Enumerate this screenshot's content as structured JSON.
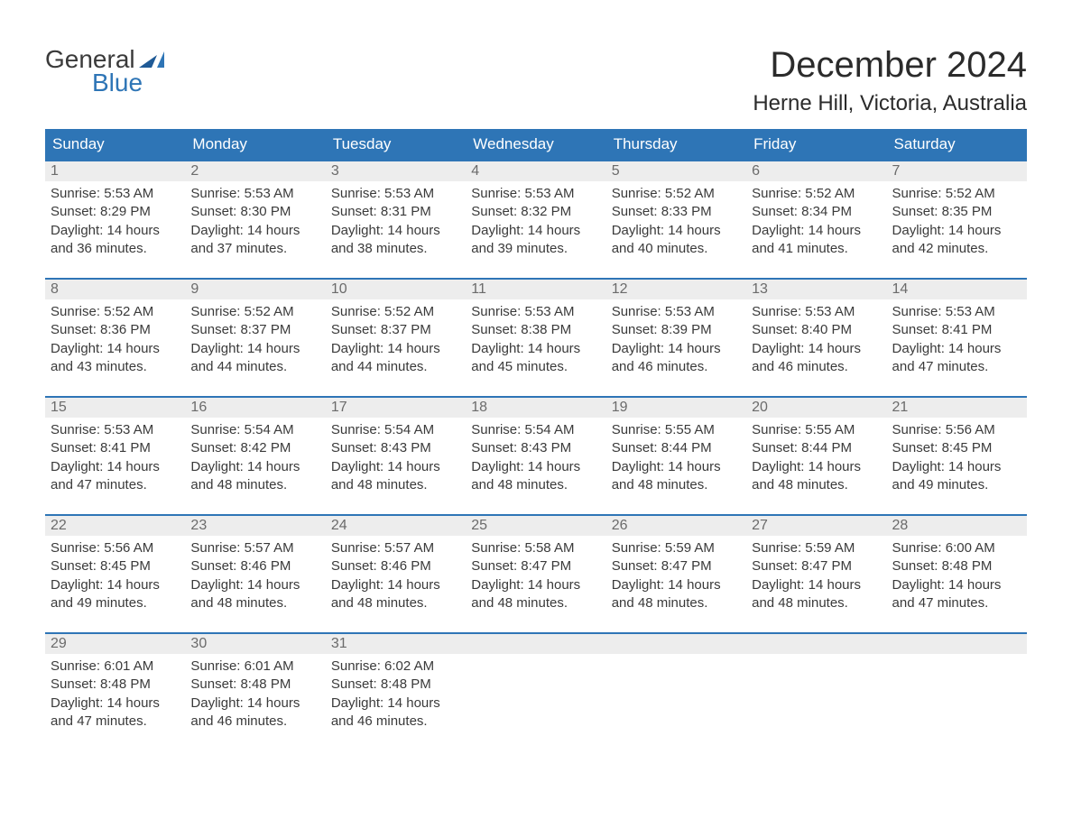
{
  "logo": {
    "line1": "General",
    "line2": "Blue"
  },
  "title": "December 2024",
  "subtitle": "Herne Hill, Victoria, Australia",
  "colors": {
    "header_bg": "#2e75b6",
    "header_text": "#ffffff",
    "daynum_bg": "#ededed",
    "daynum_text": "#6b6b6b",
    "body_text": "#3a3a3a",
    "week_border": "#2e75b6",
    "page_bg": "#ffffff",
    "title_color": "#2b2b2b"
  },
  "day_labels": [
    "Sunday",
    "Monday",
    "Tuesday",
    "Wednesday",
    "Thursday",
    "Friday",
    "Saturday"
  ],
  "weeks": [
    [
      {
        "n": "1",
        "sunrise": "5:53 AM",
        "sunset": "8:29 PM",
        "daylight": "14 hours and 36 minutes."
      },
      {
        "n": "2",
        "sunrise": "5:53 AM",
        "sunset": "8:30 PM",
        "daylight": "14 hours and 37 minutes."
      },
      {
        "n": "3",
        "sunrise": "5:53 AM",
        "sunset": "8:31 PM",
        "daylight": "14 hours and 38 minutes."
      },
      {
        "n": "4",
        "sunrise": "5:53 AM",
        "sunset": "8:32 PM",
        "daylight": "14 hours and 39 minutes."
      },
      {
        "n": "5",
        "sunrise": "5:52 AM",
        "sunset": "8:33 PM",
        "daylight": "14 hours and 40 minutes."
      },
      {
        "n": "6",
        "sunrise": "5:52 AM",
        "sunset": "8:34 PM",
        "daylight": "14 hours and 41 minutes."
      },
      {
        "n": "7",
        "sunrise": "5:52 AM",
        "sunset": "8:35 PM",
        "daylight": "14 hours and 42 minutes."
      }
    ],
    [
      {
        "n": "8",
        "sunrise": "5:52 AM",
        "sunset": "8:36 PM",
        "daylight": "14 hours and 43 minutes."
      },
      {
        "n": "9",
        "sunrise": "5:52 AM",
        "sunset": "8:37 PM",
        "daylight": "14 hours and 44 minutes."
      },
      {
        "n": "10",
        "sunrise": "5:52 AM",
        "sunset": "8:37 PM",
        "daylight": "14 hours and 44 minutes."
      },
      {
        "n": "11",
        "sunrise": "5:53 AM",
        "sunset": "8:38 PM",
        "daylight": "14 hours and 45 minutes."
      },
      {
        "n": "12",
        "sunrise": "5:53 AM",
        "sunset": "8:39 PM",
        "daylight": "14 hours and 46 minutes."
      },
      {
        "n": "13",
        "sunrise": "5:53 AM",
        "sunset": "8:40 PM",
        "daylight": "14 hours and 46 minutes."
      },
      {
        "n": "14",
        "sunrise": "5:53 AM",
        "sunset": "8:41 PM",
        "daylight": "14 hours and 47 minutes."
      }
    ],
    [
      {
        "n": "15",
        "sunrise": "5:53 AM",
        "sunset": "8:41 PM",
        "daylight": "14 hours and 47 minutes."
      },
      {
        "n": "16",
        "sunrise": "5:54 AM",
        "sunset": "8:42 PM",
        "daylight": "14 hours and 48 minutes."
      },
      {
        "n": "17",
        "sunrise": "5:54 AM",
        "sunset": "8:43 PM",
        "daylight": "14 hours and 48 minutes."
      },
      {
        "n": "18",
        "sunrise": "5:54 AM",
        "sunset": "8:43 PM",
        "daylight": "14 hours and 48 minutes."
      },
      {
        "n": "19",
        "sunrise": "5:55 AM",
        "sunset": "8:44 PM",
        "daylight": "14 hours and 48 minutes."
      },
      {
        "n": "20",
        "sunrise": "5:55 AM",
        "sunset": "8:44 PM",
        "daylight": "14 hours and 48 minutes."
      },
      {
        "n": "21",
        "sunrise": "5:56 AM",
        "sunset": "8:45 PM",
        "daylight": "14 hours and 49 minutes."
      }
    ],
    [
      {
        "n": "22",
        "sunrise": "5:56 AM",
        "sunset": "8:45 PM",
        "daylight": "14 hours and 49 minutes."
      },
      {
        "n": "23",
        "sunrise": "5:57 AM",
        "sunset": "8:46 PM",
        "daylight": "14 hours and 48 minutes."
      },
      {
        "n": "24",
        "sunrise": "5:57 AM",
        "sunset": "8:46 PM",
        "daylight": "14 hours and 48 minutes."
      },
      {
        "n": "25",
        "sunrise": "5:58 AM",
        "sunset": "8:47 PM",
        "daylight": "14 hours and 48 minutes."
      },
      {
        "n": "26",
        "sunrise": "5:59 AM",
        "sunset": "8:47 PM",
        "daylight": "14 hours and 48 minutes."
      },
      {
        "n": "27",
        "sunrise": "5:59 AM",
        "sunset": "8:47 PM",
        "daylight": "14 hours and 48 minutes."
      },
      {
        "n": "28",
        "sunrise": "6:00 AM",
        "sunset": "8:48 PM",
        "daylight": "14 hours and 47 minutes."
      }
    ],
    [
      {
        "n": "29",
        "sunrise": "6:01 AM",
        "sunset": "8:48 PM",
        "daylight": "14 hours and 47 minutes."
      },
      {
        "n": "30",
        "sunrise": "6:01 AM",
        "sunset": "8:48 PM",
        "daylight": "14 hours and 46 minutes."
      },
      {
        "n": "31",
        "sunrise": "6:02 AM",
        "sunset": "8:48 PM",
        "daylight": "14 hours and 46 minutes."
      },
      {
        "n": "",
        "sunrise": "",
        "sunset": "",
        "daylight": ""
      },
      {
        "n": "",
        "sunrise": "",
        "sunset": "",
        "daylight": ""
      },
      {
        "n": "",
        "sunrise": "",
        "sunset": "",
        "daylight": ""
      },
      {
        "n": "",
        "sunrise": "",
        "sunset": "",
        "daylight": ""
      }
    ]
  ],
  "labels": {
    "sunrise": "Sunrise: ",
    "sunset": "Sunset: ",
    "daylight": "Daylight: "
  },
  "typography": {
    "title_fontsize": 40,
    "subtitle_fontsize": 24,
    "header_fontsize": 17,
    "body_fontsize": 15,
    "daynum_fontsize": 16
  }
}
